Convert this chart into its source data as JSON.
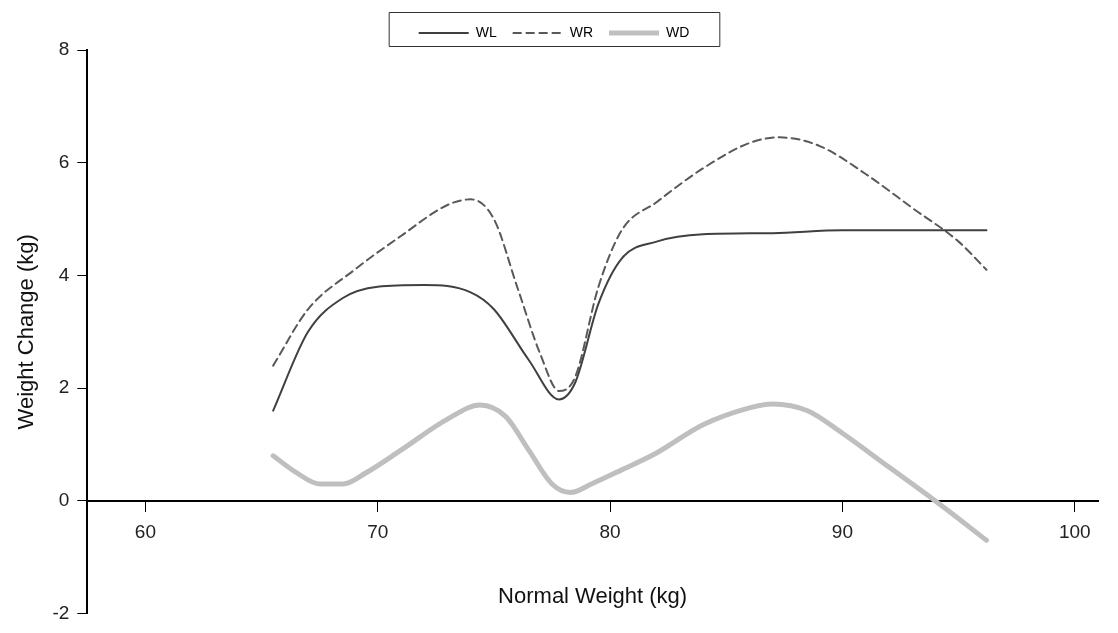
{
  "chart_data": {
    "type": "line",
    "xlabel": "Normal Weight (kg)",
    "ylabel": "Weight Change (kg)",
    "xlim": [
      57.5,
      101
    ],
    "xticks": [
      60,
      70,
      80,
      90,
      100
    ],
    "ylim": [
      -2,
      8
    ],
    "yticks": [
      -2,
      0,
      2,
      4,
      6,
      8
    ],
    "grid": false,
    "legend": "top",
    "marker": "none",
    "series": [
      {
        "name": "WL",
        "color": "#404040",
        "line_style": "solid",
        "x": [
          65.5,
          67,
          68.5,
          70,
          72,
          74,
          75,
          76.5,
          77.8,
          78.5,
          79.5,
          80.5,
          82,
          84,
          87,
          90,
          93,
          96.2
        ],
        "values": [
          1.6,
          3.0,
          3.6,
          3.8,
          3.83,
          3.7,
          3.4,
          2.5,
          1.8,
          2.1,
          3.5,
          4.3,
          4.6,
          4.73,
          4.75,
          4.8,
          4.8,
          4.8
        ]
      },
      {
        "name": "WR",
        "color": "#595959",
        "line_style": "dashed",
        "x": [
          65.5,
          67,
          69,
          71,
          73,
          74,
          75,
          76,
          77,
          77.8,
          78.5,
          79.5,
          80.5,
          82,
          84,
          86,
          87.3,
          89,
          91,
          93,
          95,
          96.2
        ],
        "values": [
          2.4,
          3.4,
          4.1,
          4.7,
          5.25,
          5.35,
          5.0,
          3.8,
          2.6,
          1.95,
          2.2,
          3.8,
          4.8,
          5.3,
          5.9,
          6.35,
          6.45,
          6.3,
          5.8,
          5.2,
          4.6,
          4.1
        ]
      },
      {
        "name": "WD",
        "color": "#bfbfbf",
        "line_style": "solid",
        "x": [
          65.5,
          66.5,
          67.5,
          68.5,
          69.5,
          71,
          73,
          74.4,
          75.5,
          76.5,
          77.5,
          78.3,
          79.2,
          80.5,
          82,
          84,
          86,
          87,
          88.5,
          90,
          92,
          94,
          96.2
        ],
        "values": [
          0.8,
          0.5,
          0.3,
          0.3,
          0.5,
          0.9,
          1.45,
          1.7,
          1.5,
          0.9,
          0.3,
          0.15,
          0.3,
          0.55,
          0.85,
          1.35,
          1.65,
          1.72,
          1.6,
          1.2,
          0.6,
          0.0,
          -0.7
        ]
      }
    ]
  }
}
